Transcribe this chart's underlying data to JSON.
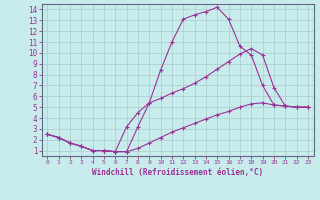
{
  "bg_color": "#c8ecec",
  "line_color": "#993399",
  "grid_color": "#aaccaa",
  "xlabel": "Windchill (Refroidissement éolien,°C)",
  "xlim": [
    -0.5,
    23.5
  ],
  "ylim": [
    0.5,
    14.5
  ],
  "xticks": [
    0,
    1,
    2,
    3,
    4,
    5,
    6,
    7,
    8,
    9,
    10,
    11,
    12,
    13,
    14,
    15,
    16,
    17,
    18,
    19,
    20,
    21,
    22,
    23
  ],
  "yticks": [
    1,
    2,
    3,
    4,
    5,
    6,
    7,
    8,
    9,
    10,
    11,
    12,
    13,
    14
  ],
  "curves": [
    {
      "x": [
        0,
        1,
        2,
        3,
        4,
        5,
        6,
        7,
        8,
        9,
        10,
        11,
        12,
        13,
        14,
        15,
        16,
        17,
        18,
        19,
        20,
        21,
        22,
        23
      ],
      "y": [
        2.5,
        2.2,
        1.7,
        1.4,
        1.0,
        1.0,
        0.9,
        0.9,
        3.2,
        5.4,
        8.4,
        11.0,
        13.1,
        13.5,
        13.8,
        14.2,
        13.1,
        10.6,
        9.8,
        7.0,
        5.2,
        5.1,
        5.0,
        5.0
      ]
    },
    {
      "x": [
        0,
        1,
        2,
        3,
        4,
        5,
        6,
        7,
        8,
        9,
        10,
        11,
        12,
        13,
        14,
        15,
        16,
        17,
        18,
        19,
        20,
        21,
        22,
        23
      ],
      "y": [
        2.5,
        2.2,
        1.7,
        1.4,
        1.0,
        1.0,
        0.9,
        3.2,
        4.5,
        5.4,
        5.8,
        6.3,
        6.7,
        7.2,
        7.8,
        8.5,
        9.2,
        9.9,
        10.4,
        9.8,
        6.8,
        5.1,
        5.0,
        5.0
      ]
    },
    {
      "x": [
        0,
        1,
        2,
        3,
        4,
        5,
        6,
        7,
        8,
        9,
        10,
        11,
        12,
        13,
        14,
        15,
        16,
        17,
        18,
        19,
        20,
        21,
        22,
        23
      ],
      "y": [
        2.5,
        2.2,
        1.7,
        1.4,
        1.0,
        1.0,
        0.9,
        0.9,
        1.2,
        1.7,
        2.2,
        2.7,
        3.1,
        3.5,
        3.9,
        4.3,
        4.6,
        5.0,
        5.3,
        5.4,
        5.2,
        5.1,
        5.0,
        5.0
      ]
    }
  ]
}
